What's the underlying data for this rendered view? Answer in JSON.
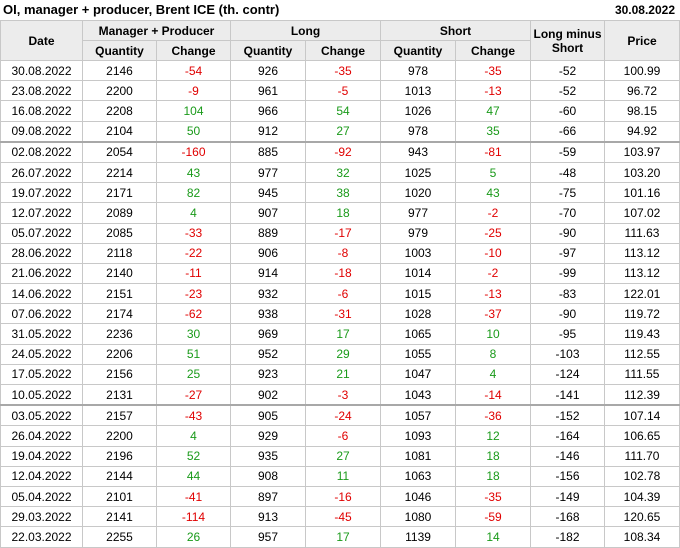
{
  "header": {
    "title": "OI, manager + producer, Brent ICE (th. contr)",
    "date": "30.08.2022"
  },
  "table": {
    "columns": {
      "date": "Date",
      "groups": [
        "Manager + Producer",
        "Long",
        "Short"
      ],
      "sub": [
        "Quantity",
        "Change",
        "Quantity",
        "Change",
        "Quantity",
        "Change"
      ],
      "diff": "Long minus Short",
      "price": "Price"
    },
    "rows": [
      [
        "30.08.2022",
        "2146",
        "-54",
        "926",
        "-35",
        "978",
        "-35",
        "-52",
        "100.99"
      ],
      [
        "23.08.2022",
        "2200",
        "-9",
        "961",
        "-5",
        "1013",
        "-13",
        "-52",
        "96.72"
      ],
      [
        "16.08.2022",
        "2208",
        "104",
        "966",
        "54",
        "1026",
        "47",
        "-60",
        "98.15"
      ],
      [
        "09.08.2022",
        "2104",
        "50",
        "912",
        "27",
        "978",
        "35",
        "-66",
        "94.92"
      ],
      [
        "02.08.2022",
        "2054",
        "-160",
        "885",
        "-92",
        "943",
        "-81",
        "-59",
        "103.97"
      ],
      [
        "26.07.2022",
        "2214",
        "43",
        "977",
        "32",
        "1025",
        "5",
        "-48",
        "103.20"
      ],
      [
        "19.07.2022",
        "2171",
        "82",
        "945",
        "38",
        "1020",
        "43",
        "-75",
        "101.16"
      ],
      [
        "12.07.2022",
        "2089",
        "4",
        "907",
        "18",
        "977",
        "-2",
        "-70",
        "107.02"
      ],
      [
        "05.07.2022",
        "2085",
        "-33",
        "889",
        "-17",
        "979",
        "-25",
        "-90",
        "111.63"
      ],
      [
        "28.06.2022",
        "2118",
        "-22",
        "906",
        "-8",
        "1003",
        "-10",
        "-97",
        "113.12"
      ],
      [
        "21.06.2022",
        "2140",
        "-11",
        "914",
        "-18",
        "1014",
        "-2",
        "-99",
        "113.12"
      ],
      [
        "14.06.2022",
        "2151",
        "-23",
        "932",
        "-6",
        "1015",
        "-13",
        "-83",
        "122.01"
      ],
      [
        "07.06.2022",
        "2174",
        "-62",
        "938",
        "-31",
        "1028",
        "-37",
        "-90",
        "119.72"
      ],
      [
        "31.05.2022",
        "2236",
        "30",
        "969",
        "17",
        "1065",
        "10",
        "-95",
        "119.43"
      ],
      [
        "24.05.2022",
        "2206",
        "51",
        "952",
        "29",
        "1055",
        "8",
        "-103",
        "112.55"
      ],
      [
        "17.05.2022",
        "2156",
        "25",
        "923",
        "21",
        "1047",
        "4",
        "-124",
        "111.55"
      ],
      [
        "10.05.2022",
        "2131",
        "-27",
        "902",
        "-3",
        "1043",
        "-14",
        "-141",
        "112.39"
      ],
      [
        "03.05.2022",
        "2157",
        "-43",
        "905",
        "-24",
        "1057",
        "-36",
        "-152",
        "107.14"
      ],
      [
        "26.04.2022",
        "2200",
        "4",
        "929",
        "-6",
        "1093",
        "12",
        "-164",
        "106.65"
      ],
      [
        "19.04.2022",
        "2196",
        "52",
        "935",
        "27",
        "1081",
        "18",
        "-146",
        "111.70"
      ],
      [
        "12.04.2022",
        "2144",
        "44",
        "908",
        "11",
        "1063",
        "18",
        "-156",
        "102.78"
      ],
      [
        "05.04.2022",
        "2101",
        "-41",
        "897",
        "-16",
        "1046",
        "-35",
        "-149",
        "104.39"
      ],
      [
        "29.03.2022",
        "2141",
        "-114",
        "913",
        "-45",
        "1080",
        "-59",
        "-168",
        "120.65"
      ],
      [
        "22.03.2022",
        "2255",
        "26",
        "957",
        "17",
        "1139",
        "14",
        "-182",
        "108.34"
      ]
    ]
  }
}
